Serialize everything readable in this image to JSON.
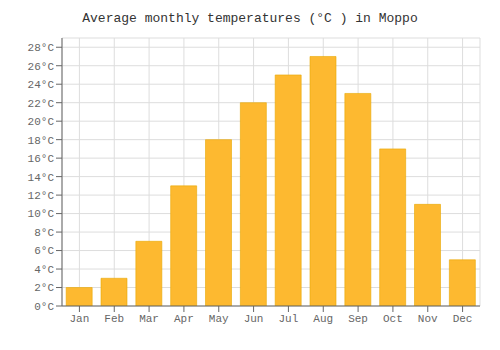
{
  "chart_data": {
    "type": "bar",
    "title": "Average monthly temperatures (°C ) in Moppo",
    "categories": [
      "Jan",
      "Feb",
      "Mar",
      "Apr",
      "May",
      "Jun",
      "Jul",
      "Aug",
      "Sep",
      "Oct",
      "Nov",
      "Dec"
    ],
    "values": [
      2,
      3,
      7,
      13,
      18,
      22,
      25,
      27,
      23,
      17,
      11,
      5
    ],
    "color": "#FDB930",
    "ylim": [
      0,
      29
    ],
    "yticks": [
      {
        "value": 0,
        "label": "0°C"
      },
      {
        "value": 2,
        "label": "2°C"
      },
      {
        "value": 4,
        "label": "4°C"
      },
      {
        "value": 6,
        "label": "6°C"
      },
      {
        "value": 8,
        "label": "8°C"
      },
      {
        "value": 10,
        "label": "10°C"
      },
      {
        "value": 12,
        "label": "12°C"
      },
      {
        "value": 14,
        "label": "14°C"
      },
      {
        "value": 16,
        "label": "16°C"
      },
      {
        "value": 18,
        "label": "18°C"
      },
      {
        "value": 20,
        "label": "20°C"
      },
      {
        "value": 22,
        "label": "22°C"
      },
      {
        "value": 24,
        "label": "24°C"
      },
      {
        "value": 26,
        "label": "26°C"
      },
      {
        "value": 28,
        "label": "28°C"
      }
    ],
    "grid": true
  }
}
